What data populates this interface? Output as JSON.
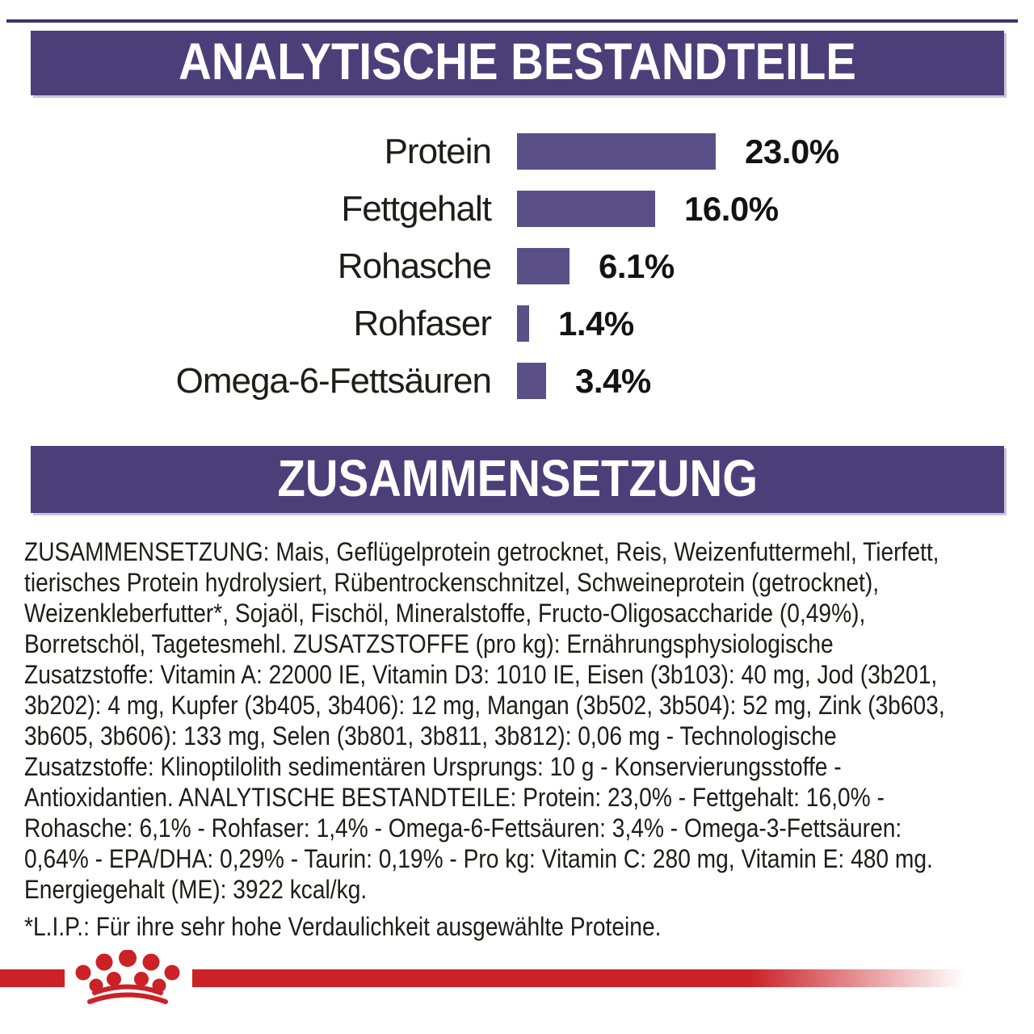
{
  "sections": {
    "analytical": {
      "title": "ANALYTISCHE BESTANDTEILE",
      "banner_color": "#4c3f79",
      "banner_edge_color": "#c9c4dd"
    },
    "composition": {
      "title": "ZUSAMMENSETZUNG",
      "banner_color": "#4c3f79",
      "banner_edge_color": "#c9c4dd"
    }
  },
  "chart_data": {
    "type": "bar",
    "orientation": "horizontal",
    "title": "ANALYTISCHE BESTANDTEILE",
    "categories": [
      "Protein",
      "Fettgehalt",
      "Rohasche",
      "Rohfaser",
      "Omega-6-Fettsäuren"
    ],
    "values": [
      23.0,
      16.0,
      6.1,
      1.4,
      3.4
    ],
    "value_labels": [
      "23.0%",
      "16.0%",
      "6.1%",
      "1.4%",
      "3.4%"
    ],
    "unit": "%",
    "xlim": [
      0,
      23
    ],
    "grid": false,
    "legend": false,
    "bar_color": "#5b4f88",
    "label_color": "#1d1d1b"
  },
  "composition_text": {
    "lines": [
      "ZUSAMMENSETZUNG: Mais, Geflügelprotein getrocknet, Reis, Weizenfuttermehl, Tierfett,",
      "tierisches Protein hydrolysiert, Rübentrockenschnitzel, Schweineprotein (getrocknet),",
      "Weizenkleberfutter*, Sojaöl, Fischöl, Mineralstoffe, Fructo-Oligosaccharide (0,49%),",
      "Borretschöl, Tagetesmehl. ZUSATZSTOFFE (pro kg): Ernährungsphysiologische",
      "Zusatzstoffe: Vitamin A: 22000 IE, Vitamin D3: 1010 IE, Eisen (3b103): 40 mg, Jod (3b201,",
      "3b202): 4 mg, Kupfer (3b405, 3b406): 12 mg, Mangan (3b502, 3b504): 52 mg, Zink (3b603,",
      "3b605, 3b606): 133 mg, Selen (3b801, 3b811, 3b812): 0,06 mg - Technologische",
      "Zusatzstoffe: Klinoptilolith sedimentären Ursprungs: 10 g - Konservierungsstoffe -",
      "Antioxidantien. ANALYTISCHE BESTANDTEILE: Protein: 23,0% - Fettgehalt: 16,0% -",
      "Rohasche: 6,1% - Rohfaser: 1,4% - Omega-6-Fettsäuren: 3,4% - Omega-3-Fettsäuren:",
      "0,64% - EPA/DHA: 0,29% - Taurin: 0,19% - Pro kg: Vitamin C: 280 mg, Vitamin E: 480 mg.",
      "Energiegehalt (ME): 3922 kcal/kg."
    ]
  },
  "footnote": "*L.I.P.: Für ihre sehr hohe Verdaulichkeit ausgewählte Proteine.",
  "brand": {
    "logo": "royal-canin-crown",
    "color": "#cc2127"
  }
}
